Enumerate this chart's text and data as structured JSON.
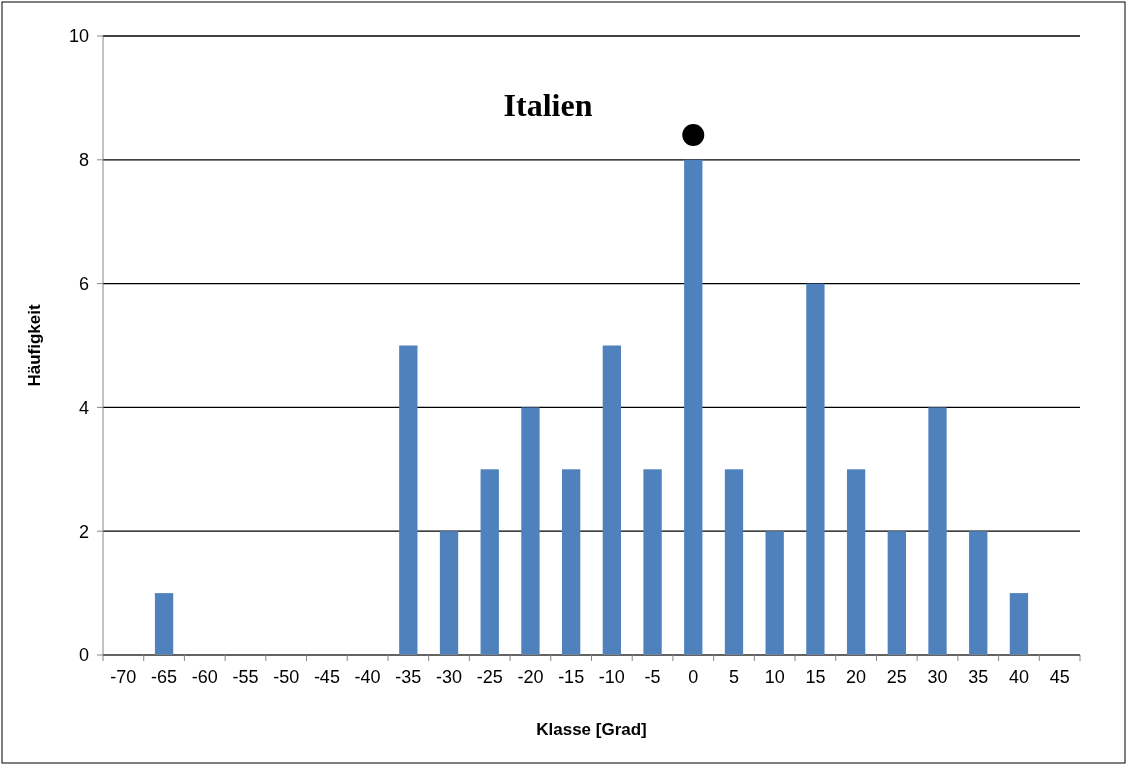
{
  "chart_data": {
    "type": "bar",
    "title": "Italien",
    "xlabel": "Klasse [Grad]",
    "ylabel": "Häufigkeit",
    "categories": [
      "-70",
      "-65",
      "-60",
      "-55",
      "-50",
      "-45",
      "-40",
      "-35",
      "-30",
      "-25",
      "-20",
      "-15",
      "-10",
      "-5",
      "0",
      "5",
      "10",
      "15",
      "20",
      "25",
      "30",
      "35",
      "40",
      "45"
    ],
    "series": [
      {
        "color": "#4f81bd",
        "values": [
          0,
          1,
          0,
          0,
          0,
          0,
          0,
          5,
          2,
          3,
          4,
          3,
          5,
          3,
          8,
          3,
          2,
          6,
          3,
          2,
          4,
          2,
          1,
          0
        ]
      },
      {
        "type": "scatter",
        "color": "#000000",
        "x": [
          "0"
        ],
        "values": [
          8.4
        ]
      }
    ],
    "ylim": [
      0,
      10
    ],
    "yticks": [
      0,
      2,
      4,
      6,
      8,
      10
    ],
    "grid": "y",
    "marker": "circle"
  }
}
